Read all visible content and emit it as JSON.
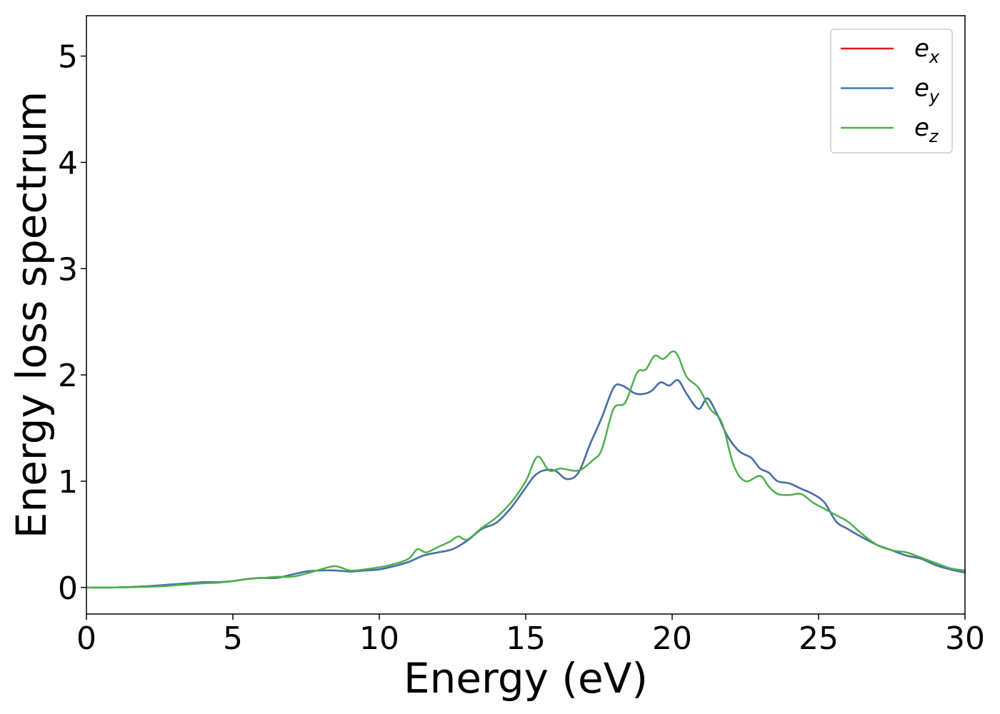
{
  "chart_data": {
    "type": "line",
    "title": "",
    "xlabel": "Energy (eV)",
    "ylabel": "Energy loss spectrum",
    "xlim": [
      0,
      30
    ],
    "ylim": [
      -0.25,
      5.38
    ],
    "xticks": [
      0,
      5,
      10,
      15,
      20,
      25,
      30
    ],
    "yticks": [
      0,
      1,
      2,
      3,
      4,
      5
    ],
    "xtick_labels": [
      "0",
      "5",
      "10",
      "15",
      "20",
      "25",
      "30"
    ],
    "ytick_labels": [
      "0",
      "1",
      "2",
      "3",
      "4",
      "5"
    ],
    "grid": false,
    "legend_position": "top-right",
    "series": [
      {
        "name": "e_x",
        "label_base": "e",
        "label_sub": "x",
        "color": "#d62728",
        "legend_color": "#e41a1c",
        "x": [
          0,
          1,
          2,
          2.5,
          3,
          3.5,
          4,
          4.5,
          5,
          5.5,
          6,
          6.5,
          7,
          7.5,
          8,
          8.5,
          9,
          9.5,
          10,
          10.5,
          11,
          11.5,
          12,
          12.5,
          13,
          13.5,
          14,
          14.5,
          15,
          15.3,
          15.6,
          16,
          16.4,
          16.8,
          17.2,
          17.6,
          18,
          18.3,
          18.7,
          19,
          19.3,
          19.6,
          19.9,
          20.2,
          20.5,
          20.9,
          21.2,
          21.5,
          21.9,
          22.3,
          22.7,
          23,
          23.3,
          23.6,
          24,
          24.4,
          24.8,
          25.2,
          25.6,
          26,
          26.5,
          27,
          27.5,
          28,
          28.5,
          29,
          29.5,
          30
        ],
        "y": [
          0,
          0,
          0.01,
          0.02,
          0.03,
          0.04,
          0.05,
          0.05,
          0.06,
          0.08,
          0.09,
          0.09,
          0.12,
          0.15,
          0.16,
          0.16,
          0.15,
          0.16,
          0.17,
          0.2,
          0.24,
          0.3,
          0.33,
          0.36,
          0.44,
          0.55,
          0.61,
          0.75,
          0.94,
          1.05,
          1.1,
          1.1,
          1.02,
          1.08,
          1.35,
          1.6,
          1.88,
          1.9,
          1.83,
          1.82,
          1.85,
          1.93,
          1.9,
          1.95,
          1.82,
          1.68,
          1.78,
          1.65,
          1.42,
          1.28,
          1.22,
          1.12,
          1.08,
          1.0,
          0.98,
          0.93,
          0.88,
          0.8,
          0.62,
          0.55,
          0.47,
          0.4,
          0.35,
          0.3,
          0.27,
          0.21,
          0.17,
          0.14
        ]
      },
      {
        "name": "e_y",
        "label_base": "e",
        "label_sub": "y",
        "color": "#4272b0",
        "legend_color": "#377eb8",
        "x": [
          0,
          1,
          2,
          2.5,
          3,
          3.5,
          4,
          4.5,
          5,
          5.5,
          6,
          6.5,
          7,
          7.5,
          8,
          8.5,
          9,
          9.5,
          10,
          10.5,
          11,
          11.5,
          12,
          12.5,
          13,
          13.5,
          14,
          14.5,
          15,
          15.3,
          15.6,
          16,
          16.4,
          16.8,
          17.2,
          17.6,
          18,
          18.3,
          18.7,
          19,
          19.3,
          19.6,
          19.9,
          20.2,
          20.5,
          20.9,
          21.2,
          21.5,
          21.9,
          22.3,
          22.7,
          23,
          23.3,
          23.6,
          24,
          24.4,
          24.8,
          25.2,
          25.6,
          26,
          26.5,
          27,
          27.5,
          28,
          28.5,
          29,
          29.5,
          30
        ],
        "y": [
          0,
          0,
          0.01,
          0.02,
          0.03,
          0.04,
          0.05,
          0.05,
          0.06,
          0.08,
          0.09,
          0.09,
          0.12,
          0.15,
          0.16,
          0.16,
          0.15,
          0.16,
          0.17,
          0.2,
          0.24,
          0.3,
          0.33,
          0.36,
          0.44,
          0.55,
          0.61,
          0.75,
          0.94,
          1.05,
          1.1,
          1.1,
          1.02,
          1.08,
          1.35,
          1.6,
          1.88,
          1.9,
          1.83,
          1.82,
          1.85,
          1.93,
          1.9,
          1.95,
          1.82,
          1.68,
          1.78,
          1.65,
          1.42,
          1.28,
          1.22,
          1.12,
          1.08,
          1.0,
          0.98,
          0.93,
          0.88,
          0.8,
          0.62,
          0.55,
          0.47,
          0.4,
          0.35,
          0.3,
          0.27,
          0.21,
          0.17,
          0.14
        ]
      },
      {
        "name": "e_z",
        "label_base": "e",
        "label_sub": "z",
        "color": "#4daf4a",
        "legend_color": "#4daf4a",
        "x": [
          0,
          1,
          2,
          2.5,
          3,
          3.5,
          4,
          4.5,
          5,
          5.5,
          6,
          6.5,
          7,
          7.5,
          8,
          8.5,
          9,
          9.5,
          10,
          10.5,
          11,
          11.3,
          11.6,
          12,
          12.4,
          12.7,
          13,
          13.5,
          14,
          14.5,
          15,
          15.4,
          15.8,
          16.2,
          16.8,
          17.3,
          17.6,
          18,
          18.4,
          18.8,
          19.1,
          19.4,
          19.7,
          20,
          20.2,
          20.5,
          20.9,
          21.3,
          21.7,
          22.1,
          22.5,
          23,
          23.3,
          23.6,
          24,
          24.4,
          24.8,
          25.2,
          25.6,
          26,
          26.5,
          27,
          27.5,
          28,
          28.5,
          29,
          29.5,
          30
        ],
        "y": [
          0,
          0,
          0.005,
          0.01,
          0.02,
          0.03,
          0.04,
          0.045,
          0.06,
          0.08,
          0.09,
          0.1,
          0.1,
          0.13,
          0.17,
          0.2,
          0.16,
          0.17,
          0.19,
          0.22,
          0.27,
          0.36,
          0.33,
          0.38,
          0.43,
          0.48,
          0.45,
          0.56,
          0.66,
          0.8,
          1.0,
          1.23,
          1.1,
          1.12,
          1.1,
          1.2,
          1.3,
          1.68,
          1.74,
          2.02,
          2.05,
          2.18,
          2.15,
          2.22,
          2.18,
          1.98,
          1.88,
          1.68,
          1.55,
          1.15,
          1.0,
          1.05,
          0.95,
          0.88,
          0.87,
          0.88,
          0.8,
          0.74,
          0.68,
          0.62,
          0.5,
          0.4,
          0.35,
          0.33,
          0.28,
          0.23,
          0.18,
          0.16
        ]
      }
    ]
  }
}
